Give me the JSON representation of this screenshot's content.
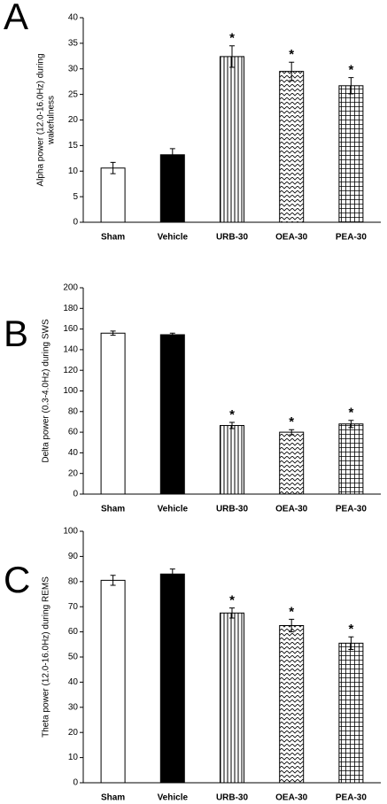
{
  "chart_data": [
    {
      "type": "bar",
      "panel": "A",
      "ylabel": [
        "Alpha power (12.0-16.0Hz) during",
        "wakefulness"
      ],
      "categories": [
        "Sham",
        "Vehicle",
        "URB-30",
        "OEA-30",
        "PEA-30"
      ],
      "values": [
        10.6,
        13.2,
        32.4,
        29.5,
        26.7
      ],
      "errors": [
        1.1,
        1.2,
        2.1,
        1.8,
        1.6
      ],
      "annotations": [
        null,
        null,
        "*",
        "*",
        "*"
      ],
      "patterns": [
        "none",
        "solid",
        "vertical",
        "zigzag",
        "grid"
      ],
      "color": "#000000",
      "ylim": [
        0,
        40
      ],
      "yticks": [
        0,
        5,
        10,
        15,
        20,
        25,
        30,
        35,
        40
      ]
    },
    {
      "type": "bar",
      "panel": "B",
      "ylabel": [
        "Delta power (0.3-4.0Hz) during SWS"
      ],
      "categories": [
        "Sham",
        "Vehicle",
        "URB-30",
        "OEA-30",
        "PEA-30"
      ],
      "values": [
        156,
        154.5,
        66.5,
        60,
        68
      ],
      "errors": [
        2,
        1.5,
        3,
        2.5,
        3.5
      ],
      "annotations": [
        null,
        null,
        "*",
        "*",
        "*"
      ],
      "patterns": [
        "none",
        "solid",
        "vertical",
        "zigzag",
        "grid"
      ],
      "color": "#000000",
      "ylim": [
        0,
        200
      ],
      "yticks": [
        0,
        20,
        40,
        60,
        80,
        100,
        120,
        140,
        160,
        180,
        200
      ]
    },
    {
      "type": "bar",
      "panel": "C",
      "ylabel": [
        "Theta power (12.0-16.0Hz) during REMS"
      ],
      "categories": [
        "Sham",
        "Vehicle",
        "URB-30",
        "OEA-30",
        "PEA-30"
      ],
      "values": [
        80.5,
        83,
        67.5,
        62.5,
        55.5
      ],
      "errors": [
        2,
        2,
        2,
        2.5,
        2.5
      ],
      "annotations": [
        null,
        null,
        "*",
        "*",
        "*"
      ],
      "patterns": [
        "none",
        "solid",
        "vertical",
        "zigzag",
        "grid"
      ],
      "color": "#000000",
      "ylim": [
        0,
        100
      ],
      "yticks": [
        0,
        10,
        20,
        30,
        40,
        50,
        60,
        70,
        80,
        90,
        100
      ]
    }
  ]
}
